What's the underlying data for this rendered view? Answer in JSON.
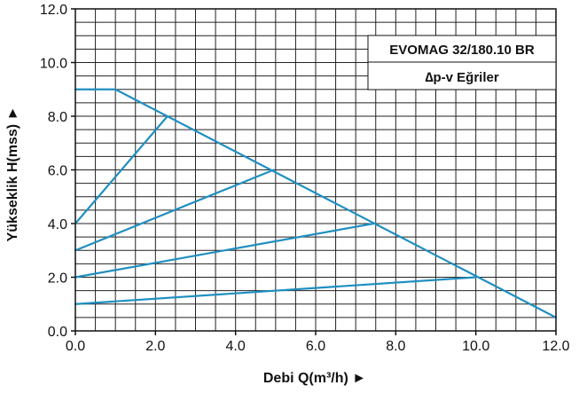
{
  "chart_data": {
    "type": "line",
    "xlabel": "Debi Q(m³/h) ►",
    "ylabel": "Yükseklik H(mss) ►",
    "xlim": [
      0,
      12
    ],
    "ylim": [
      0,
      12
    ],
    "xticks": [
      "0.0",
      "2.0",
      "4.0",
      "6.0",
      "8.0",
      "10.0",
      "12.0"
    ],
    "yticks": [
      "0.0",
      "2.0",
      "4.0",
      "6.0",
      "8.0",
      "10.0",
      "12.0"
    ],
    "grid": true,
    "line_color": "#1f8fc0",
    "legend_box": {
      "title": "EVOMAG 32/180.10 BR",
      "subtitle": "∆p-v Eğriler"
    },
    "series": [
      {
        "x": [
          0,
          1.0,
          12.0
        ],
        "y": [
          9.0,
          9.0,
          0.5
        ]
      },
      {
        "x": [
          0,
          2.3
        ],
        "y": [
          4.0,
          8.0
        ]
      },
      {
        "x": [
          0,
          4.95
        ],
        "y": [
          3.0,
          6.0
        ]
      },
      {
        "x": [
          0,
          7.45
        ],
        "y": [
          2.0,
          4.0
        ]
      },
      {
        "x": [
          0,
          10.0
        ],
        "y": [
          1.0,
          2.0
        ]
      }
    ]
  }
}
